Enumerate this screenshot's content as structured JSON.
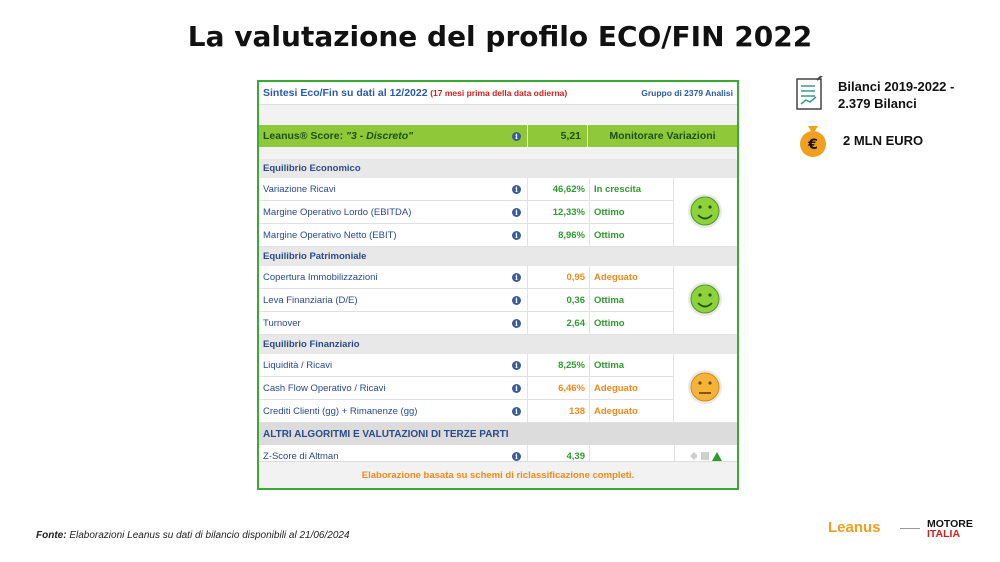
{
  "title": "La valutazione del profilo ECO/FIN 2022",
  "header": {
    "title": "Sintesi Eco/Fin su dati al 12/2022",
    "warning": "(17 mesi prima della data odierna)",
    "group": "Gruppo di 2379 Analisi"
  },
  "score": {
    "label": "Leanus® Score:",
    "rating": "\"3 - Discreto\"",
    "value": "5,21",
    "status": "Monitorare Variazioni"
  },
  "sections": [
    {
      "title": "Equilibrio Economico",
      "face": "happy",
      "rows": [
        {
          "label": "Variazione Ricavi",
          "value": "46,62%",
          "status": "In crescita",
          "color": "green"
        },
        {
          "label": "Margine Operativo Lordo (EBITDA)",
          "value": "12,33%",
          "status": "Ottimo",
          "color": "green"
        },
        {
          "label": "Margine Operativo Netto (EBIT)",
          "value": "8,96%",
          "status": "Ottimo",
          "color": "green"
        }
      ]
    },
    {
      "title": "Equilibrio Patrimoniale",
      "face": "happy",
      "rows": [
        {
          "label": "Copertura Immobilizzazioni",
          "value": "0,95",
          "status": "Adeguato",
          "color": "orange"
        },
        {
          "label": "Leva Finanziaria (D/E)",
          "value": "0,36",
          "status": "Ottima",
          "color": "green"
        },
        {
          "label": "Turnover",
          "value": "2,64",
          "status": "Ottimo",
          "color": "green"
        }
      ]
    },
    {
      "title": "Equilibrio Finanziario",
      "face": "neutral",
      "rows": [
        {
          "label": "Liquidità / Ricavi",
          "value": "8,25%",
          "status": "Ottima",
          "color": "green"
        },
        {
          "label": "Cash Flow Operativo / Ricavi",
          "value": "6,46%",
          "status": "Adeguato",
          "color": "orange"
        },
        {
          "label": "Crediti Clienti (gg) + Rimanenze (gg)",
          "value": "138",
          "status": "Adeguato",
          "color": "orange"
        }
      ]
    }
  ],
  "altri": {
    "title": "ALTRI ALGORITMI E VALUTAZIONI DI TERZE PARTI",
    "z_label": "Z-Score di Altman",
    "z_value": "4,39"
  },
  "footer_note": "Elaborazione basata su schemi di riclassificazione completi.",
  "side": {
    "doc_line1": "Bilanci 2019-2022  -",
    "doc_line2": "2.379 Bilanci",
    "money": "2 MLN EURO",
    "doc_icon": "document-chart-icon",
    "money_icon": "euro-bag-icon"
  },
  "source": {
    "prefix": "Fonte:",
    "text": " Elaborazioni Leanus su dati di bilancio disponibili al 21/06/2024"
  },
  "logos": {
    "leanus": "Leanus",
    "motore": "MOTORE",
    "italia": "ITALIA"
  },
  "colors": {
    "green": "#2f9b2f",
    "orange": "#ee8a1c",
    "score_bg": "#8fc93a",
    "border": "#3aaa35"
  }
}
